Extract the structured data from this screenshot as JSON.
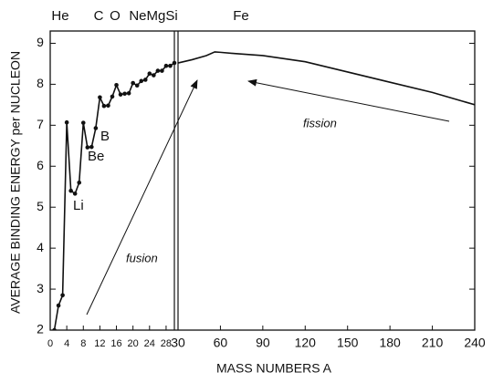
{
  "chart_data": [
    {
      "type": "line",
      "ylabel": "AVERAGE  BINDING ENERGY per NUCLEON",
      "markers": true,
      "color": "#111111",
      "annotations": [
        "He",
        "C",
        "O",
        "NeMgSi",
        "Li",
        "Be",
        "B",
        "fusion"
      ],
      "x": [
        1,
        2,
        3,
        4,
        5,
        6,
        7,
        8,
        9,
        10,
        11,
        12,
        13,
        14,
        15,
        16,
        17,
        18,
        19,
        20,
        21,
        22,
        23,
        24,
        25,
        26,
        27,
        28,
        29,
        30
      ],
      "series": [
        {
          "values": [
            2,
            2.6,
            2.85,
            7.07,
            5.4,
            5.33,
            5.6,
            7.06,
            6.46,
            6.47,
            6.93,
            7.68,
            7.47,
            7.48,
            7.7,
            7.98,
            7.75,
            7.77,
            7.78,
            8.03,
            7.97,
            8.08,
            8.11,
            8.26,
            8.22,
            8.33,
            8.33,
            8.45,
            8.45,
            8.52
          ]
        }
      ],
      "xlim": [
        0,
        30
      ],
      "xticks": [
        0,
        4,
        8,
        12,
        16,
        20,
        24,
        28
      ],
      "ylim": [
        2,
        9.3
      ],
      "yticks": [
        2,
        3,
        4,
        5,
        6,
        7,
        8,
        9
      ]
    },
    {
      "type": "line",
      "xlabel": "MASS   NUMBERS A",
      "markers": false,
      "color": "#111111",
      "annotations": [
        "Fe",
        "fission"
      ],
      "x": [
        30,
        40,
        50,
        56,
        60,
        70,
        90,
        120,
        150,
        180,
        210,
        240
      ],
      "series": [
        {
          "values": [
            8.52,
            8.6,
            8.7,
            8.79,
            8.78,
            8.75,
            8.7,
            8.55,
            8.3,
            8.05,
            7.8,
            7.5
          ]
        }
      ],
      "xlim": [
        30,
        240
      ],
      "xticks": [
        30,
        60,
        90,
        120,
        150,
        180,
        210,
        240
      ],
      "ylim": [
        2,
        9.3
      ]
    }
  ]
}
